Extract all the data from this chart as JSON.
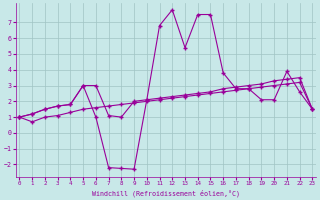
{
  "xlabel": "Windchill (Refroidissement éolien,°C)",
  "bg_color": "#c8e8e8",
  "grid_color": "#a0c4c4",
  "line_color": "#990099",
  "line1_x": [
    0,
    1,
    2,
    3,
    4,
    5,
    6,
    7,
    8,
    9,
    10,
    11,
    12,
    13,
    14,
    15,
    16,
    17,
    18,
    19,
    20,
    21,
    22,
    23
  ],
  "line1_y": [
    1.0,
    1.2,
    1.5,
    1.7,
    1.8,
    3.0,
    3.0,
    1.1,
    1.0,
    2.0,
    2.1,
    2.2,
    2.3,
    2.4,
    2.5,
    2.6,
    2.8,
    2.9,
    3.0,
    3.1,
    3.3,
    3.4,
    3.5,
    1.5
  ],
  "line2_x": [
    0,
    1,
    2,
    3,
    4,
    5,
    6,
    7,
    8,
    9,
    10,
    11,
    12,
    13,
    14,
    15,
    16,
    17,
    18,
    19,
    20,
    21,
    22,
    23
  ],
  "line2_y": [
    1.0,
    1.2,
    1.5,
    1.7,
    1.8,
    3.0,
    1.0,
    -2.2,
    -2.25,
    -2.3,
    2.1,
    6.8,
    7.8,
    5.4,
    7.5,
    7.5,
    3.8,
    2.8,
    2.8,
    2.1,
    2.1,
    3.9,
    2.6,
    1.5
  ],
  "line3_x": [
    0,
    1,
    2,
    3,
    4,
    5,
    6,
    7,
    8,
    9,
    10,
    11,
    12,
    13,
    14,
    15,
    16,
    17,
    18,
    19,
    20,
    21,
    22,
    23
  ],
  "line3_y": [
    1.0,
    0.7,
    1.0,
    1.1,
    1.3,
    1.5,
    1.6,
    1.7,
    1.8,
    1.9,
    2.0,
    2.1,
    2.2,
    2.3,
    2.4,
    2.5,
    2.6,
    2.7,
    2.8,
    2.9,
    3.0,
    3.1,
    3.2,
    1.5
  ],
  "ylim": [
    -2.8,
    8.2
  ],
  "xlim": [
    -0.3,
    23.3
  ],
  "yticks": [
    -2,
    -1,
    0,
    1,
    2,
    3,
    4,
    5,
    6,
    7
  ],
  "xticks": [
    0,
    1,
    2,
    3,
    4,
    5,
    6,
    7,
    8,
    9,
    10,
    11,
    12,
    13,
    14,
    15,
    16,
    17,
    18,
    19,
    20,
    21,
    22,
    23
  ],
  "figsize": [
    3.2,
    2.0
  ],
  "dpi": 100
}
